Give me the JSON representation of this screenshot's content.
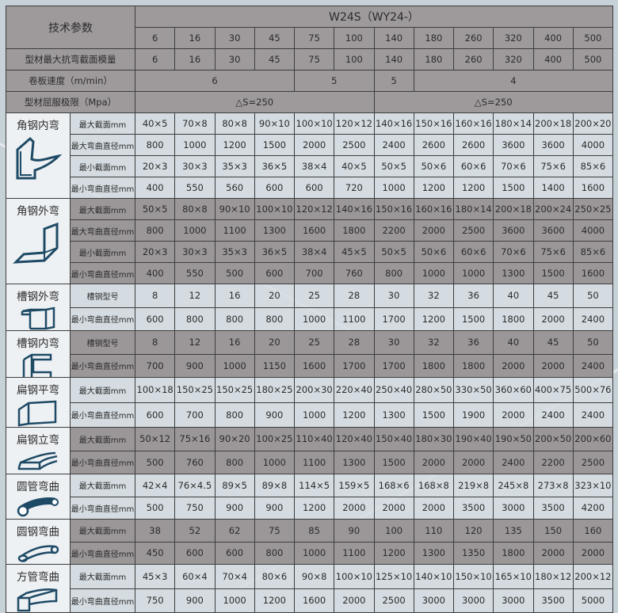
{
  "header": {
    "param_label": "技术参数",
    "model": "W24S（WY24-）",
    "models": [
      "6",
      "16",
      "30",
      "45",
      "75",
      "100",
      "140",
      "180",
      "260",
      "320",
      "400",
      "500"
    ],
    "modulus_label": "型材最大抗弯截面模量",
    "modulus": [
      "6",
      "16",
      "30",
      "45",
      "75",
      "100",
      "140",
      "180",
      "260",
      "320",
      "400",
      "500"
    ],
    "speed_label": "卷板速度（m/min）",
    "speed": [
      "6",
      "5",
      "5",
      "4"
    ],
    "yield_label": "型材屈服极限（Mpa）",
    "yield": [
      "△S=250",
      "△S=250"
    ]
  },
  "groups": [
    {
      "name": "角钢内弯",
      "icon": "angle-inner-bend-icon",
      "shade": "light",
      "rows": [
        {
          "label": "最大截面mm",
          "values": [
            "40×5",
            "70×8",
            "80×8",
            "90×10",
            "100×10",
            "120×12",
            "140×16",
            "150×16",
            "160×16",
            "180×14",
            "200×18",
            "200×20"
          ]
        },
        {
          "label": "最大弯曲直径mm",
          "values": [
            "800",
            "1000",
            "1200",
            "1500",
            "2000",
            "2500",
            "2400",
            "2600",
            "2600",
            "3600",
            "3600",
            "4000"
          ]
        },
        {
          "label": "最小截面mm",
          "values": [
            "20×3",
            "30×3",
            "35×3",
            "36×5",
            "38×4",
            "40×5",
            "50×5",
            "50×6",
            "60×6",
            "70×6",
            "75×6",
            "85×6"
          ]
        },
        {
          "label": "最小弯曲直径mm",
          "values": [
            "400",
            "550",
            "560",
            "600",
            "600",
            "720",
            "1000",
            "1200",
            "1200",
            "1500",
            "1400",
            "1600"
          ]
        }
      ]
    },
    {
      "name": "角钢外弯",
      "icon": "angle-outer-bend-icon",
      "shade": "dark",
      "rows": [
        {
          "label": "最大截面mm",
          "values": [
            "50×5",
            "80×8",
            "90×10",
            "100×10",
            "120×12",
            "140×16",
            "150×16",
            "160×16",
            "180×14",
            "200×18",
            "200×24",
            "250×25"
          ]
        },
        {
          "label": "最大弯曲直径mm",
          "values": [
            "800",
            "1000",
            "1100",
            "1300",
            "1600",
            "1800",
            "2200",
            "2000",
            "2500",
            "3600",
            "3600",
            "4000"
          ]
        },
        {
          "label": "最小截面mm",
          "values": [
            "20×3",
            "30×3",
            "35×3",
            "36×5",
            "38×4",
            "45×5",
            "50×5",
            "50×6",
            "60×6",
            "70×6",
            "75×6",
            "85×6"
          ]
        },
        {
          "label": "最小弯曲直径mm",
          "values": [
            "400",
            "550",
            "500",
            "600",
            "700",
            "760",
            "800",
            "1000",
            "1000",
            "1300",
            "1500",
            "1600"
          ]
        }
      ]
    },
    {
      "name": "槽钢外弯",
      "icon": "channel-outer-bend-icon",
      "shade": "light",
      "rows": [
        {
          "label": "槽钢型号",
          "values": [
            "8",
            "12",
            "16",
            "20",
            "25",
            "28",
            "30",
            "32",
            "36",
            "40",
            "45",
            "50"
          ]
        },
        {
          "label": "最小弯曲直径mm",
          "values": [
            "600",
            "800",
            "800",
            "800",
            "1000",
            "1100",
            "1700",
            "1200",
            "1500",
            "1800",
            "2000",
            "2400"
          ]
        }
      ]
    },
    {
      "name": "槽钢内弯",
      "icon": "channel-inner-bend-icon",
      "shade": "dark",
      "rows": [
        {
          "label": "槽钢型号",
          "values": [
            "8",
            "12",
            "16",
            "20",
            "25",
            "28",
            "30",
            "32",
            "36",
            "40",
            "45",
            "50"
          ]
        },
        {
          "label": "最小弯曲直径mm",
          "values": [
            "700",
            "900",
            "1000",
            "1150",
            "1600",
            "1700",
            "1700",
            "1800",
            "1800",
            "2000",
            "2000",
            "2400"
          ]
        }
      ]
    },
    {
      "name": "扁钢平弯",
      "icon": "flat-steel-flat-bend-icon",
      "shade": "light",
      "rows": [
        {
          "label": "最大截面mm",
          "values": [
            "100×18",
            "150×25",
            "150×25",
            "180×25",
            "200×30",
            "220×40",
            "250×40",
            "280×50",
            "330×50",
            "360×60",
            "400×75",
            "500×76"
          ]
        },
        {
          "label": "最小弯曲直径mm",
          "values": [
            "600",
            "700",
            "800",
            "900",
            "1000",
            "1200",
            "1300",
            "1500",
            "1900",
            "2000",
            "2400",
            "2400"
          ]
        }
      ]
    },
    {
      "name": "扁钢立弯",
      "icon": "flat-steel-edge-bend-icon",
      "shade": "dark",
      "rows": [
        {
          "label": "最大截面mm",
          "values": [
            "50×12",
            "75×16",
            "90×20",
            "100×25",
            "110×40",
            "120×40",
            "150×40",
            "180×30",
            "190×40",
            "190×50",
            "200×50",
            "200×60"
          ]
        },
        {
          "label": "最小弯曲直径mm",
          "values": [
            "500",
            "760",
            "800",
            "1000",
            "1100",
            "1300",
            "1500",
            "2000",
            "2000",
            "2400",
            "2200",
            "2500"
          ]
        }
      ]
    },
    {
      "name": "圆管弯曲",
      "icon": "round-tube-bend-icon",
      "shade": "light",
      "rows": [
        {
          "label": "最大截面mm",
          "values": [
            "42×4",
            "76×4.5",
            "89×5",
            "89×8",
            "114×5",
            "159×5",
            "168×6",
            "168×8",
            "219×8",
            "245×8",
            "273×8",
            "323×10"
          ]
        },
        {
          "label": "最小弯曲直径mm",
          "values": [
            "500",
            "750",
            "900",
            "900",
            "1200",
            "2000",
            "2000",
            "2000",
            "3500",
            "3000",
            "3500",
            "4200"
          ]
        }
      ]
    },
    {
      "name": "圆钢弯曲",
      "icon": "round-bar-bend-icon",
      "shade": "dark",
      "rows": [
        {
          "label": "最大截面mm",
          "values": [
            "38",
            "52",
            "62",
            "75",
            "85",
            "90",
            "100",
            "110",
            "120",
            "135",
            "150",
            "160"
          ]
        },
        {
          "label": "最小弯曲直径mm",
          "values": [
            "450",
            "600",
            "600",
            "800",
            "1000",
            "1100",
            "1200",
            "1300",
            "1350",
            "1800",
            "2000",
            "2000"
          ]
        }
      ]
    },
    {
      "name": "方管弯曲",
      "icon": "square-tube-bend-icon",
      "shade": "light",
      "rows": [
        {
          "label": "最大截面mm",
          "values": [
            "45×3",
            "60×4",
            "70×4",
            "80×6",
            "90×8",
            "100×10",
            "125×10",
            "140×10",
            "150×10",
            "165×10",
            "180×12",
            "200×12"
          ]
        },
        {
          "label": "最小弯曲直径mm",
          "values": [
            "750",
            "900",
            "1000",
            "1200",
            "1600",
            "2000",
            "2500",
            "3000",
            "3000",
            "3000",
            "3500",
            "5000"
          ]
        }
      ]
    }
  ],
  "colors": {
    "header": "#9e9a9b",
    "light_row": "#d6dee3",
    "dark_row": "#9b9798",
    "icon": "#1e4a66",
    "background": "#c7d1d8"
  }
}
